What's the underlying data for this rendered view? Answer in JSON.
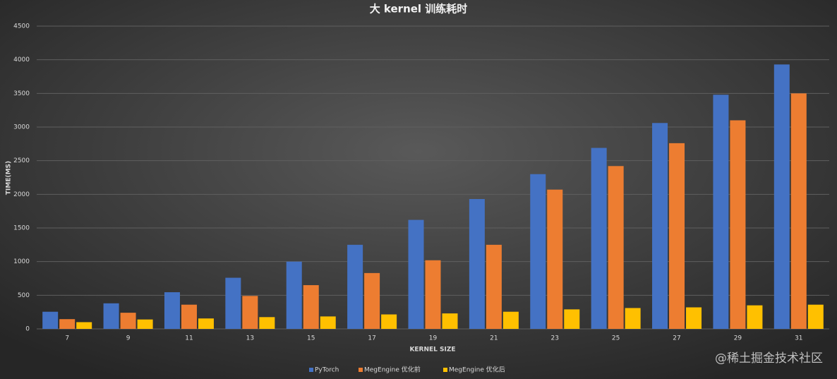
{
  "chart_data": {
    "type": "bar",
    "title": "大 kernel 训练耗时",
    "x_label": "KERNEL SIZE",
    "y_label": "TIME(MS)",
    "categories": [
      "7",
      "9",
      "11",
      "13",
      "15",
      "17",
      "19",
      "21",
      "23",
      "25",
      "27",
      "29",
      "31"
    ],
    "series": [
      {
        "name": "PyTorch",
        "color": "#4472c4",
        "values": [
          255,
          380,
          545,
          760,
          1000,
          1250,
          1620,
          1930,
          2300,
          2690,
          3060,
          3480,
          3930
        ]
      },
      {
        "name": "MegEngine 优化前",
        "color": "#ed7d31",
        "values": [
          145,
          240,
          360,
          490,
          650,
          830,
          1020,
          1250,
          2070,
          2420,
          2760,
          3100,
          3500
        ]
      },
      {
        "name": "MegEngine 优化后",
        "color": "#ffc000",
        "values": [
          100,
          140,
          155,
          175,
          185,
          215,
          230,
          255,
          290,
          310,
          320,
          350,
          360
        ]
      }
    ],
    "ylim": [
      0,
      4500
    ],
    "yticks": [
      0,
      500,
      1000,
      1500,
      2000,
      2500,
      3000,
      3500,
      4000,
      4500
    ],
    "grid": true,
    "legend": "bottom",
    "watermark": "@稀土掘金技术社区"
  }
}
